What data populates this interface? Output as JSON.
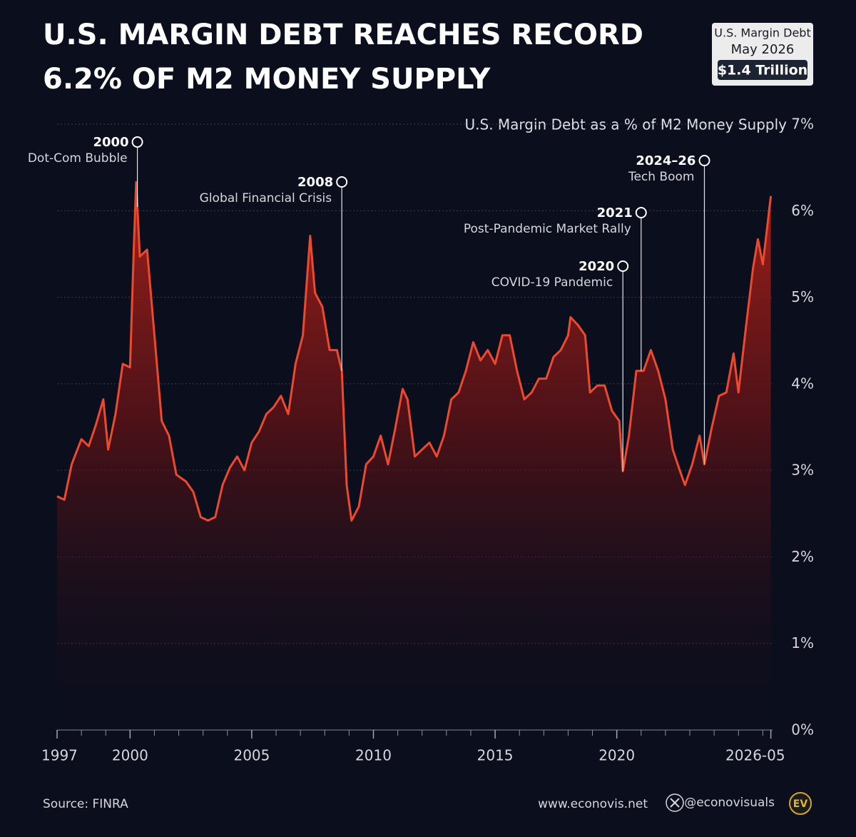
{
  "chart_data": {
    "type": "area",
    "title": [
      "U.S. MARGIN DEBT REACHES RECORD",
      "6.2% OF M2 MONEY SUPPLY"
    ],
    "badge": [
      "U.S. Margin Debt",
      "May 2026",
      "$1.4 Trillion"
    ],
    "ylabel": "U.S. Margin Debt as a % of M2 Money Supply",
    "source": "Source: FINRA",
    "website": "www.econovis.net",
    "handle": "@econovisuals",
    "logo": "EV",
    "color": "#ec4a2e",
    "grid": true,
    "xlim": [
      1997,
      2026.4
    ],
    "ylim": [
      0,
      7
    ],
    "xticks": [
      1997,
      2000,
      2005,
      2010,
      2015,
      2020,
      {
        "value": 2026.33,
        "label": "2026-05"
      }
    ],
    "xminor": [
      1997,
      1998,
      1999,
      2000,
      2001,
      2002,
      2003,
      2004,
      2005,
      2006,
      2007,
      2008,
      2009,
      2010,
      2011,
      2012,
      2013,
      2014,
      2015,
      2016,
      2017,
      2018,
      2019,
      2020,
      2021,
      2022,
      2023,
      2024,
      2025,
      2026
    ],
    "yticks": [
      {
        "value": 0,
        "label": "0%"
      },
      {
        "value": 1,
        "label": "1%"
      },
      {
        "value": 2,
        "label": "2%"
      },
      {
        "value": 3,
        "label": "3%"
      },
      {
        "value": 4,
        "label": "4%"
      },
      {
        "value": 5,
        "label": "5%"
      },
      {
        "value": 6,
        "label": "6%"
      },
      {
        "value": 7,
        "label": "7%"
      }
    ],
    "annotations": [
      {
        "label": "2000",
        "text": "Dot-Com Bubble",
        "x": 2000.3
      },
      {
        "label": "2008",
        "text": "Global Financial Crisis",
        "x": 2008.7
      },
      {
        "label": "2020",
        "text": "COVID-19 Pandemic",
        "x": 2020.25
      },
      {
        "label": "2021",
        "text": "Post-Pandemic Market Rally",
        "x": 2021.0
      },
      {
        "label": "2024–26",
        "text": "Tech Boom",
        "x": 2023.6
      }
    ],
    "x": [
      1997.0,
      1997.3,
      1997.6,
      1998.0,
      1998.3,
      1998.6,
      1998.9,
      1999.1,
      1999.4,
      1999.7,
      2000.0,
      2000.15,
      2000.25,
      2000.4,
      2000.7,
      2001.0,
      2001.3,
      2001.6,
      2001.9,
      2002.3,
      2002.6,
      2002.9,
      2003.2,
      2003.5,
      2003.8,
      2004.1,
      2004.4,
      2004.7,
      2005.0,
      2005.3,
      2005.6,
      2005.9,
      2006.2,
      2006.5,
      2006.8,
      2007.1,
      2007.4,
      2007.6,
      2007.9,
      2008.2,
      2008.5,
      2008.7,
      2008.9,
      2009.1,
      2009.4,
      2009.7,
      2010.0,
      2010.3,
      2010.6,
      2010.9,
      2011.2,
      2011.4,
      2011.7,
      2012.0,
      2012.3,
      2012.6,
      2012.9,
      2013.2,
      2013.5,
      2013.8,
      2014.1,
      2014.4,
      2014.7,
      2015.0,
      2015.3,
      2015.6,
      2015.9,
      2016.2,
      2016.5,
      2016.8,
      2017.1,
      2017.4,
      2017.7,
      2018.0,
      2018.1,
      2018.4,
      2018.7,
      2018.9,
      2019.2,
      2019.5,
      2019.8,
      2020.1,
      2020.25,
      2020.5,
      2020.8,
      2021.1,
      2021.4,
      2021.7,
      2022.0,
      2022.3,
      2022.6,
      2022.8,
      2023.1,
      2023.4,
      2023.6,
      2023.9,
      2024.2,
      2024.5,
      2024.8,
      2025.0,
      2025.3,
      2025.6,
      2025.8,
      2026.0,
      2026.33
    ],
    "series": [
      {
        "name": "U.S. Margin Debt as a % of M2 Money Supply",
        "color": "#ec4a2e",
        "values": [
          2.7,
          2.66,
          3.07,
          3.36,
          3.28,
          3.53,
          3.82,
          3.24,
          3.65,
          4.23,
          4.19,
          5.55,
          6.33,
          5.47,
          5.55,
          4.56,
          3.57,
          3.4,
          2.95,
          2.87,
          2.75,
          2.46,
          2.42,
          2.46,
          2.83,
          3.03,
          3.16,
          3.0,
          3.32,
          3.45,
          3.65,
          3.73,
          3.86,
          3.65,
          4.23,
          4.56,
          5.71,
          5.05,
          4.89,
          4.39,
          4.39,
          4.15,
          2.83,
          2.42,
          2.58,
          3.07,
          3.16,
          3.4,
          3.07,
          3.49,
          3.94,
          3.82,
          3.16,
          3.24,
          3.32,
          3.16,
          3.4,
          3.82,
          3.9,
          4.15,
          4.48,
          4.27,
          4.39,
          4.23,
          4.56,
          4.56,
          4.15,
          3.82,
          3.9,
          4.06,
          4.06,
          4.31,
          4.39,
          4.56,
          4.77,
          4.68,
          4.56,
          3.9,
          3.98,
          3.98,
          3.69,
          3.57,
          2.99,
          3.4,
          4.15,
          4.15,
          4.39,
          4.15,
          3.82,
          3.24,
          2.99,
          2.83,
          3.07,
          3.4,
          3.07,
          3.49,
          3.86,
          3.9,
          4.35,
          3.9,
          4.64,
          5.34,
          5.67,
          5.38,
          6.17
        ]
      }
    ]
  }
}
